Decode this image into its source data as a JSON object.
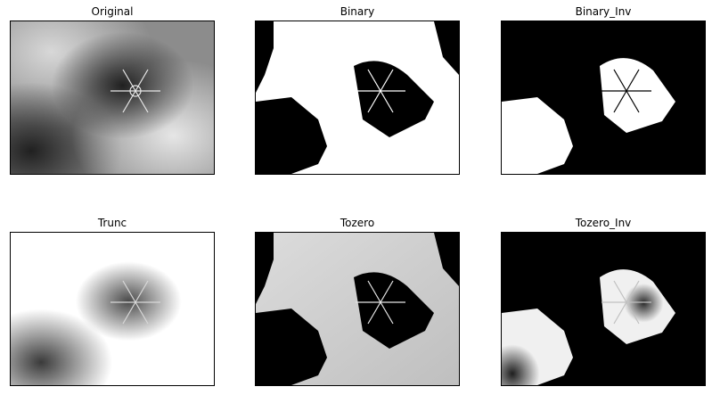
{
  "figure": {
    "panels": [
      {
        "key": "original",
        "title": "Original",
        "image": "snowflake-original"
      },
      {
        "key": "binary",
        "title": "Binary",
        "image": "snowflake-binary"
      },
      {
        "key": "binary_inv",
        "title": "Binary_Inv",
        "image": "snowflake-binary-inverted"
      },
      {
        "key": "trunc",
        "title": "Trunc",
        "image": "snowflake-trunc"
      },
      {
        "key": "tozero",
        "title": "Tozero",
        "image": "snowflake-tozero"
      },
      {
        "key": "tozero_inv",
        "title": "Tozero_Inv",
        "image": "snowflake-tozero-inverted"
      }
    ]
  }
}
